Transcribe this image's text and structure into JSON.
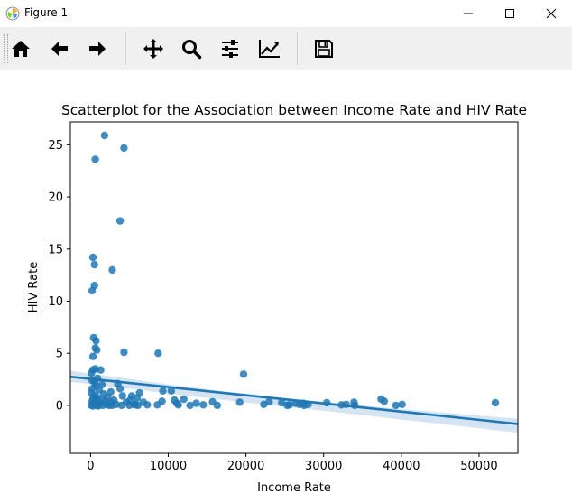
{
  "window": {
    "title": "Figure 1",
    "controls": [
      "minimize",
      "maximize",
      "close"
    ]
  },
  "toolbar": {
    "buttons": [
      {
        "id": "home",
        "icon": "home-icon"
      },
      {
        "id": "back",
        "icon": "left-arrow-icon"
      },
      {
        "id": "forward",
        "icon": "right-arrow-icon"
      },
      {
        "id": "pan",
        "icon": "move-icon"
      },
      {
        "id": "zoom",
        "icon": "magnifier-icon"
      },
      {
        "id": "subplots",
        "icon": "sliders-icon"
      },
      {
        "id": "customize",
        "icon": "line-chart-icon"
      },
      {
        "id": "save",
        "icon": "floppy-disk-icon"
      }
    ]
  },
  "chart_data": {
    "type": "scatter",
    "title": "Scatterplot for the Association between Income Rate and HIV Rate",
    "xlabel": "Income Rate",
    "ylabel": "HIV Rate",
    "xlim": [
      -2600,
      55000
    ],
    "ylim": [
      -4.6,
      27.2
    ],
    "xticks": [
      0,
      10000,
      20000,
      30000,
      40000,
      50000
    ],
    "yticks": [
      0,
      5,
      10,
      15,
      20,
      25
    ],
    "grid": false,
    "colors": {
      "points": "#1f77b4",
      "line": "#1f77b4",
      "band": "#c6dbef"
    },
    "regression": {
      "x": [
        -2600,
        55000
      ],
      "y": [
        2.75,
        -1.78
      ]
    },
    "confidence_band": {
      "x": [
        -2600,
        0,
        5000,
        10000,
        15000,
        20000,
        25000,
        30000,
        35000,
        40000,
        45000,
        50000,
        55000
      ],
      "upper": [
        3.35,
        3.05,
        2.55,
        2.02,
        1.55,
        1.12,
        0.72,
        0.35,
        -0.01,
        -0.35,
        -0.66,
        -0.97,
        -1.28
      ],
      "lower": [
        2.25,
        2.05,
        1.6,
        1.15,
        0.7,
        0.28,
        -0.12,
        -0.52,
        -0.92,
        -1.36,
        -1.76,
        -2.2,
        -2.62
      ]
    },
    "points": [
      {
        "x": 1800,
        "y": 25.9
      },
      {
        "x": 4300,
        "y": 24.7
      },
      {
        "x": 600,
        "y": 23.6
      },
      {
        "x": 3800,
        "y": 17.7
      },
      {
        "x": 300,
        "y": 14.2
      },
      {
        "x": 500,
        "y": 13.5
      },
      {
        "x": 2800,
        "y": 13.0
      },
      {
        "x": 500,
        "y": 11.5
      },
      {
        "x": 200,
        "y": 11.0
      },
      {
        "x": 400,
        "y": 6.5
      },
      {
        "x": 700,
        "y": 6.2
      },
      {
        "x": 600,
        "y": 5.5
      },
      {
        "x": 800,
        "y": 5.3
      },
      {
        "x": 4300,
        "y": 5.1
      },
      {
        "x": 8700,
        "y": 5.0
      },
      {
        "x": 300,
        "y": 4.7
      },
      {
        "x": 19700,
        "y": 3.0
      },
      {
        "x": 300,
        "y": 3.4
      },
      {
        "x": 600,
        "y": 3.5
      },
      {
        "x": 1300,
        "y": 3.4
      },
      {
        "x": 100,
        "y": 3.1
      },
      {
        "x": 900,
        "y": 2.6
      },
      {
        "x": 200,
        "y": 2.4
      },
      {
        "x": 500,
        "y": 2.2
      },
      {
        "x": 1500,
        "y": 2.0
      },
      {
        "x": 3500,
        "y": 2.1
      },
      {
        "x": 700,
        "y": 1.9
      },
      {
        "x": 3800,
        "y": 1.6
      },
      {
        "x": 200,
        "y": 1.6
      },
      {
        "x": 1100,
        "y": 1.5
      },
      {
        "x": 9300,
        "y": 1.4
      },
      {
        "x": 10400,
        "y": 1.4
      },
      {
        "x": 2600,
        "y": 1.3
      },
      {
        "x": 6300,
        "y": 1.2
      },
      {
        "x": 100,
        "y": 1.2
      },
      {
        "x": 1700,
        "y": 1.1
      },
      {
        "x": 500,
        "y": 1.0
      },
      {
        "x": 4100,
        "y": 0.9
      },
      {
        "x": 5300,
        "y": 0.9
      },
      {
        "x": 6000,
        "y": 0.7
      },
      {
        "x": 2200,
        "y": 0.8
      },
      {
        "x": 800,
        "y": 0.8
      },
      {
        "x": 300,
        "y": 0.7
      },
      {
        "x": 12000,
        "y": 0.6
      },
      {
        "x": 37400,
        "y": 0.6
      },
      {
        "x": 1400,
        "y": 0.6
      },
      {
        "x": 3000,
        "y": 0.5
      },
      {
        "x": 5100,
        "y": 0.5
      },
      {
        "x": 10800,
        "y": 0.5
      },
      {
        "x": 700,
        "y": 0.5
      },
      {
        "x": 9200,
        "y": 0.4
      },
      {
        "x": 15700,
        "y": 0.35
      },
      {
        "x": 19200,
        "y": 0.3
      },
      {
        "x": 23000,
        "y": 0.35
      },
      {
        "x": 37800,
        "y": 0.4
      },
      {
        "x": 200,
        "y": 0.4
      },
      {
        "x": 1900,
        "y": 0.4
      },
      {
        "x": 2600,
        "y": 0.3
      },
      {
        "x": 4600,
        "y": 0.3
      },
      {
        "x": 6800,
        "y": 0.3
      },
      {
        "x": 11100,
        "y": 0.2
      },
      {
        "x": 13600,
        "y": 0.2
      },
      {
        "x": 24600,
        "y": 0.25
      },
      {
        "x": 26400,
        "y": 0.2
      },
      {
        "x": 27400,
        "y": 0.2
      },
      {
        "x": 30400,
        "y": 0.25
      },
      {
        "x": 33900,
        "y": 0.3
      },
      {
        "x": 40100,
        "y": 0.1
      },
      {
        "x": 52100,
        "y": 0.25
      },
      {
        "x": 400,
        "y": 0.2
      },
      {
        "x": 1200,
        "y": 0.2
      },
      {
        "x": 2100,
        "y": 0.1
      },
      {
        "x": 3300,
        "y": 0.1
      },
      {
        "x": 5600,
        "y": 0.1
      },
      {
        "x": 7300,
        "y": 0.05
      },
      {
        "x": 8600,
        "y": 0.05
      },
      {
        "x": 12800,
        "y": 0.0
      },
      {
        "x": 14500,
        "y": 0.05
      },
      {
        "x": 16300,
        "y": 0.0
      },
      {
        "x": 22300,
        "y": 0.1
      },
      {
        "x": 25600,
        "y": 0.05
      },
      {
        "x": 26900,
        "y": 0.1
      },
      {
        "x": 28000,
        "y": 0.1
      },
      {
        "x": 32300,
        "y": 0.05
      },
      {
        "x": 32900,
        "y": 0.1
      },
      {
        "x": 39300,
        "y": 0.0
      },
      {
        "x": 100,
        "y": 0.0
      },
      {
        "x": 800,
        "y": 0.0
      },
      {
        "x": 1600,
        "y": 0.0
      },
      {
        "x": 2400,
        "y": 0.0
      },
      {
        "x": 4000,
        "y": 0.0
      },
      {
        "x": 5000,
        "y": 0.0
      },
      {
        "x": 6100,
        "y": 0.0
      },
      {
        "x": 11300,
        "y": 0.05
      },
      {
        "x": 25300,
        "y": 0.0
      },
      {
        "x": 34000,
        "y": 0.0
      },
      {
        "x": 300,
        "y": -0.05
      },
      {
        "x": 1000,
        "y": -0.05
      },
      {
        "x": 2800,
        "y": 0.0
      },
      {
        "x": 5800,
        "y": 0.05
      },
      {
        "x": 27500,
        "y": 0.0
      }
    ]
  }
}
